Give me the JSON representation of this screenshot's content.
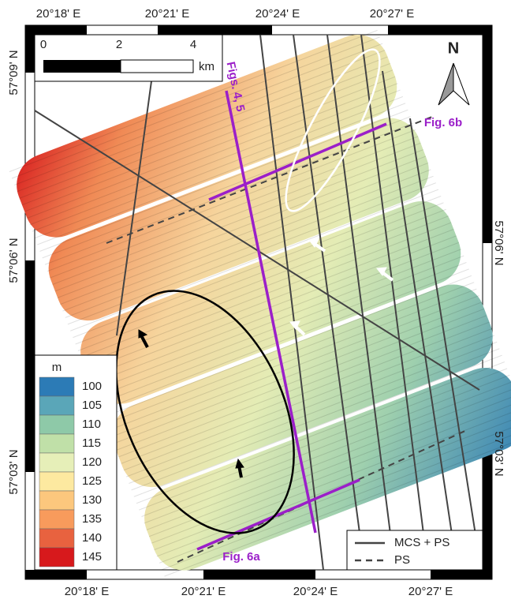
{
  "map": {
    "top_labels": [
      "20°18' E",
      "20°21' E",
      "20°24' E",
      "20°27' E"
    ],
    "bottom_labels": [
      "20°18' E",
      "20°21' E",
      "20°24' E",
      "20°27' E"
    ],
    "left_labels": [
      "57°09' N",
      "57°06' N",
      "57°03' N"
    ],
    "right_labels": [
      "57°06' N",
      "57°03' N"
    ],
    "scale_bar": {
      "ticks": [
        "0",
        "2",
        "4"
      ],
      "unit": "km"
    },
    "north": "N",
    "annotations": {
      "figs_4_5": "Figs. 4, 5",
      "fig_6b": "Fig. 6b",
      "fig_6a": "Fig. 6a"
    },
    "depth_legend": {
      "title": "m",
      "entries": [
        {
          "label": "100",
          "color": "#2c7bb6"
        },
        {
          "label": "105",
          "color": "#5aa6b8"
        },
        {
          "label": "110",
          "color": "#8ec9a8"
        },
        {
          "label": "115",
          "color": "#c0e0a8"
        },
        {
          "label": "120",
          "color": "#e6efb8"
        },
        {
          "label": "125",
          "color": "#fde9a0"
        },
        {
          "label": "130",
          "color": "#fcc77d"
        },
        {
          "label": "135",
          "color": "#f89b5c"
        },
        {
          "label": "140",
          "color": "#e8623f"
        },
        {
          "label": "145",
          "color": "#d7191c"
        }
      ]
    },
    "line_legend": [
      "MCS + PS",
      "PS"
    ]
  }
}
